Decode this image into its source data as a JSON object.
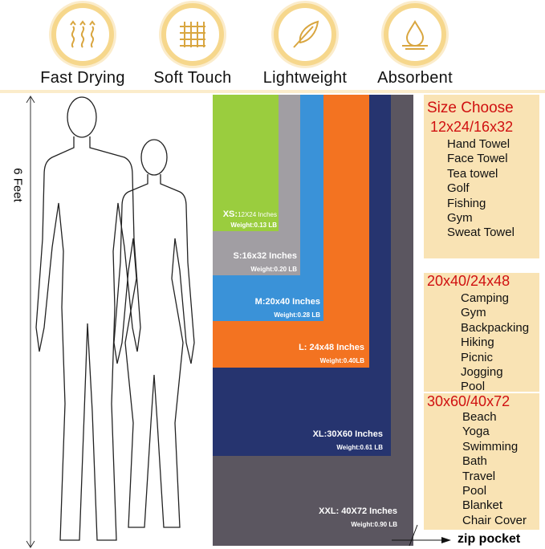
{
  "features": [
    {
      "label": "Fast Drying",
      "icon": "heat-waves-icon"
    },
    {
      "label": "Soft Touch",
      "icon": "fabric-grid-icon"
    },
    {
      "label": "Lightweight",
      "icon": "feather-icon"
    },
    {
      "label": "Absorbent",
      "icon": "water-drop-icon"
    }
  ],
  "height_label": "6 Feet",
  "towels": [
    {
      "size": "XXL: 40X72 Inches",
      "weight": "Weight:0.90 LB",
      "color": "#5b5660"
    },
    {
      "size": "XL:30X60 Inches",
      "weight": "Weight:0.61 LB",
      "color": "#26346f"
    },
    {
      "size": "L: 24x48 Inches",
      "weight": "Weight:0.40LB",
      "color": "#f37321"
    },
    {
      "size": "M:20x40 Inches",
      "weight": "Weight:0.28 LB",
      "color": "#3a92d8"
    },
    {
      "size": "S:16x32 Inches",
      "weight": "Weight:0.20 LB",
      "color": "#a19ea3"
    },
    {
      "size_prefix": "XS:",
      "size": "12X24 Inches",
      "weight": "Weight:0.13 LB",
      "color": "#9acd3e"
    }
  ],
  "zip_label": "zip pocket",
  "size_choose": {
    "title": "Size Choose",
    "groups": [
      {
        "heading": "12x24/16x32",
        "items": [
          "Hand Towel",
          "Face Towel",
          "Tea towel",
          "Golf",
          "Fishing",
          "Gym",
          "Sweat Towel"
        ]
      },
      {
        "heading": "20x40/24x48",
        "items": [
          "Camping",
          "Gym",
          "Backpacking",
          "Hiking",
          "Picnic",
          "Jogging",
          "Pool"
        ]
      },
      {
        "heading": "30x60/40x72",
        "items": [
          "Beach",
          "Yoga",
          "Swimming",
          "Bath",
          "Travel",
          "Pool",
          "Blanket",
          "Chair Cover"
        ]
      }
    ]
  }
}
